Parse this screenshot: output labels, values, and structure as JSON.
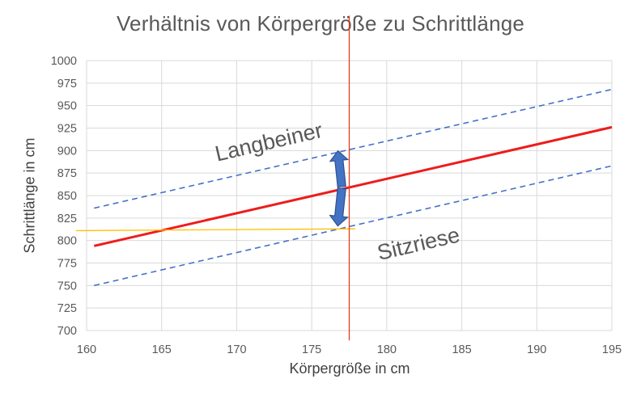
{
  "chart_data": {
    "type": "line",
    "title": "Verhältnis von Körpergröße zu Schrittlänge",
    "xlabel": "Körpergröße in cm",
    "ylabel": "Schrittlänge in cm",
    "xlim": [
      160,
      195
    ],
    "ylim": [
      700,
      1000
    ],
    "xticks": [
      160,
      165,
      170,
      175,
      180,
      185,
      190,
      195
    ],
    "yticks": [
      700,
      725,
      750,
      775,
      800,
      825,
      850,
      875,
      900,
      925,
      950,
      975,
      1000
    ],
    "grid": true,
    "series": [
      {
        "id": "mean",
        "style": "solid",
        "color": "#ee1c1c",
        "x": [
          160.5,
          195
        ],
        "y": [
          794,
          926
        ]
      },
      {
        "id": "upper",
        "style": "dashed",
        "color": "#4472c4",
        "x": [
          160.5,
          195
        ],
        "y": [
          836,
          968
        ]
      },
      {
        "id": "lower",
        "style": "dashed",
        "color": "#4472c4",
        "x": [
          160.5,
          195
        ],
        "y": [
          750,
          883
        ]
      },
      {
        "id": "horizontal-marker",
        "style": "solid",
        "color": "#ffc000",
        "x": [
          159.3,
          177.9
        ],
        "y": [
          811,
          813
        ]
      },
      {
        "id": "vertical-marker",
        "style": "solid",
        "color": "#e23c1e",
        "x": [
          177.5,
          177.5
        ],
        "y": [
          1050,
          689
        ]
      }
    ],
    "arrows": [
      {
        "x": 177,
        "y_from": 860,
        "y_to": 900
      },
      {
        "x": 177,
        "y_from": 858,
        "y_to": 816
      }
    ],
    "annotations": [
      {
        "text": "Langbeiner",
        "x": 168.7,
        "y": 888,
        "angle": -13
      },
      {
        "text": "Sitzriese",
        "x": 179.5,
        "y": 778,
        "angle": -13
      }
    ]
  }
}
